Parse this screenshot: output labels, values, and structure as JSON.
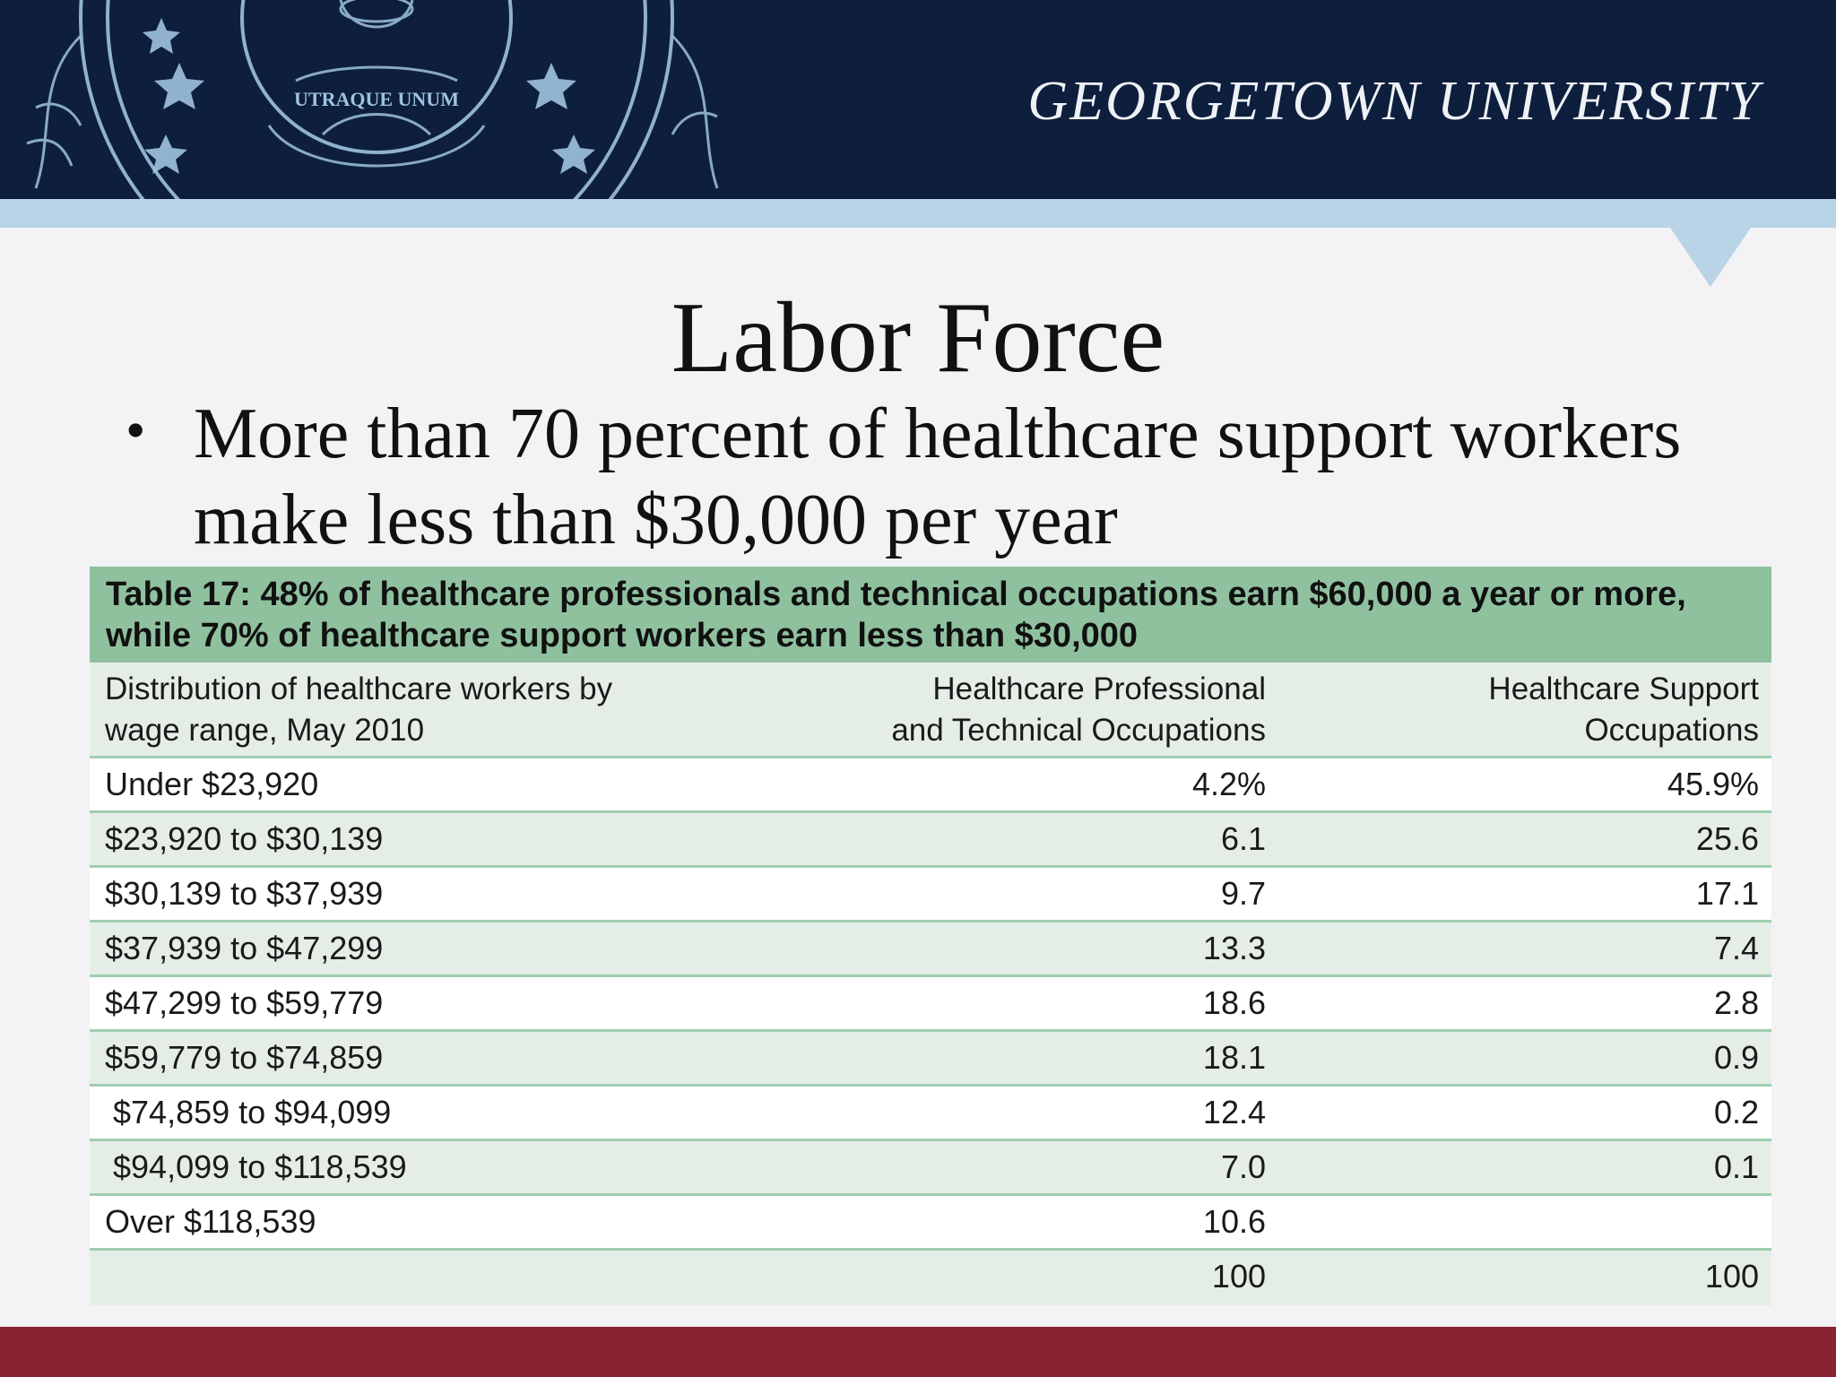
{
  "header": {
    "wordmark": "GEORGETOWN UNIVERSITY",
    "seal_text": "UTRAQUE UNUM",
    "colors": {
      "navy": "#0d1f3c",
      "light_blue": "#b8d4e6",
      "maroon": "#8a2233"
    }
  },
  "slide": {
    "title": "Labor Force",
    "bullet": "More than 70 percent of healthcare support workers make less than $30,000 per year"
  },
  "table": {
    "caption": "Table 17: 48% of healthcare professionals and technical occupations earn $60,000 a year or more, while 70% of healthcare support workers earn less than $30,000",
    "headers": {
      "col1_line1": "Distribution of healthcare workers by",
      "col1_line2": "wage range, May 2010",
      "col2_line1": "Healthcare Professional",
      "col2_line2": "and Technical Occupations",
      "col3_line1": "Healthcare Support",
      "col3_line2": "Occupations"
    },
    "rows": [
      {
        "range": "Under $23,920",
        "professional": "4.2%",
        "support": "45.9%"
      },
      {
        "range": "$23,920 to $30,139",
        "professional": "6.1",
        "support": "25.6"
      },
      {
        "range": "$30,139 to $37,939",
        "professional": "9.7",
        "support": "17.1"
      },
      {
        "range": "$37,939 to $47,299",
        "professional": "13.3",
        "support": "7.4"
      },
      {
        "range": "$47,299 to $59,779",
        "professional": "18.6",
        "support": "2.8"
      },
      {
        "range": "$59,779 to $74,859",
        "professional": "18.1",
        "support": "0.9"
      },
      {
        "range": "$74,859 to $94,099",
        "professional": "12.4",
        "support": "0.2"
      },
      {
        "range": "$94,099 to $118,539",
        "professional": "7.0",
        "support": "0.1"
      },
      {
        "range": "Over $118,539",
        "professional": "10.6",
        "support": ""
      },
      {
        "range": "",
        "professional": "100",
        "support": "100"
      }
    ],
    "colors": {
      "caption_bg": "#8fc19f",
      "stripe_bg": "#e4eee6",
      "rule": "#9fcdb0"
    }
  }
}
